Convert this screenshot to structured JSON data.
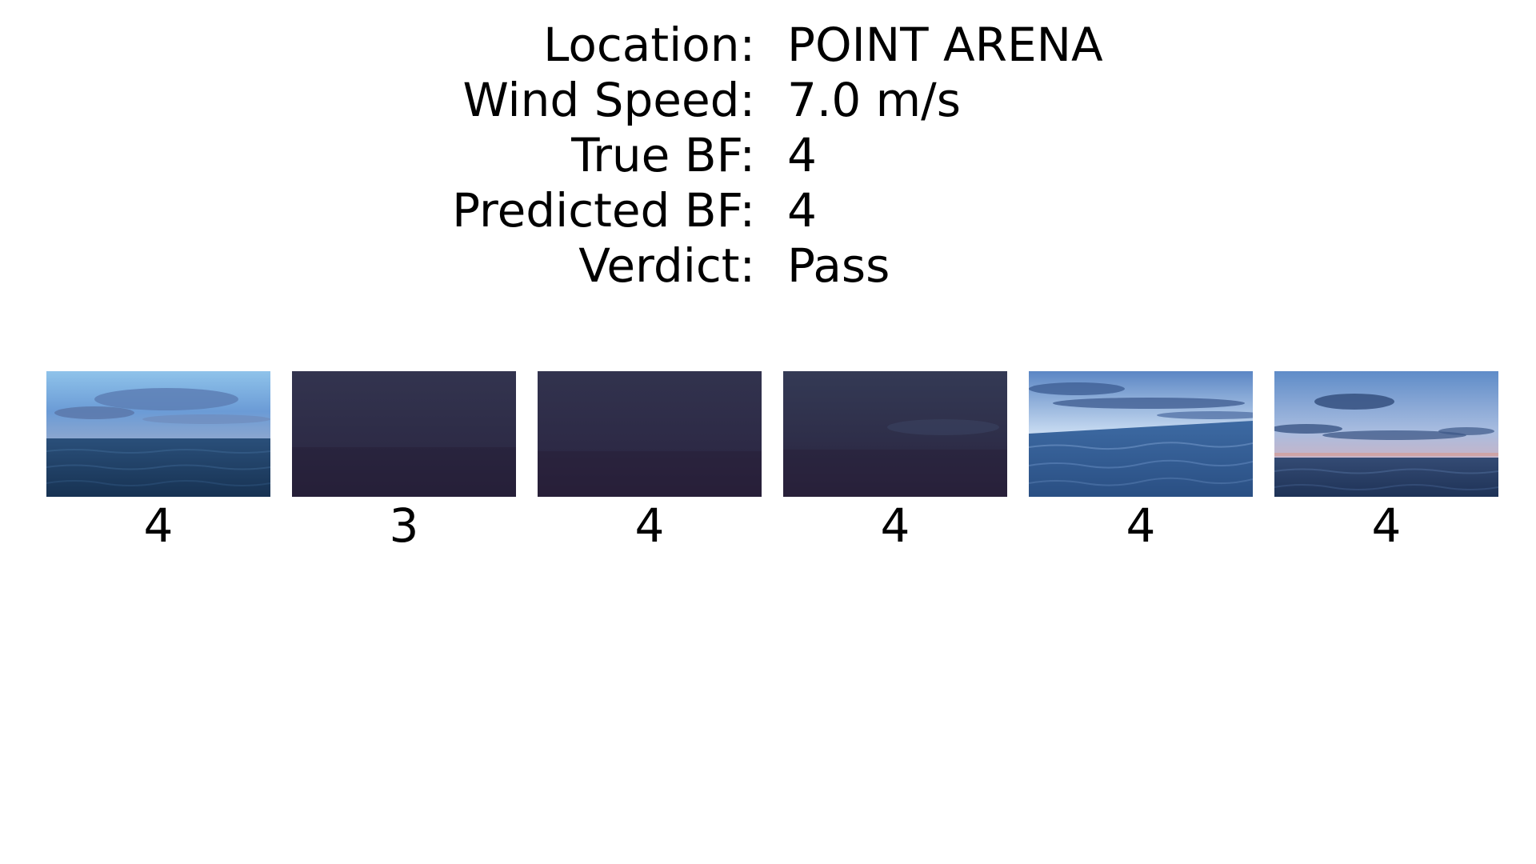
{
  "info": {
    "rows": [
      {
        "label": "Location:",
        "value": "POINT ARENA"
      },
      {
        "label": "Wind Speed:",
        "value": "7.0 m/s"
      },
      {
        "label": "True BF:",
        "value": "4"
      },
      {
        "label": "Predicted BF:",
        "value": "4"
      },
      {
        "label": "Verdict:",
        "value": "Pass"
      }
    ]
  },
  "images": [
    {
      "prediction": "4",
      "scene": "daylight-sea-with-clouds"
    },
    {
      "prediction": "3",
      "scene": "dark-sea"
    },
    {
      "prediction": "4",
      "scene": "dark-sea"
    },
    {
      "prediction": "4",
      "scene": "dark-sea"
    },
    {
      "prediction": "4",
      "scene": "daylight-sea-with-cloud-bands"
    },
    {
      "prediction": "4",
      "scene": "dusk-sea-with-cloud-bands"
    }
  ]
}
